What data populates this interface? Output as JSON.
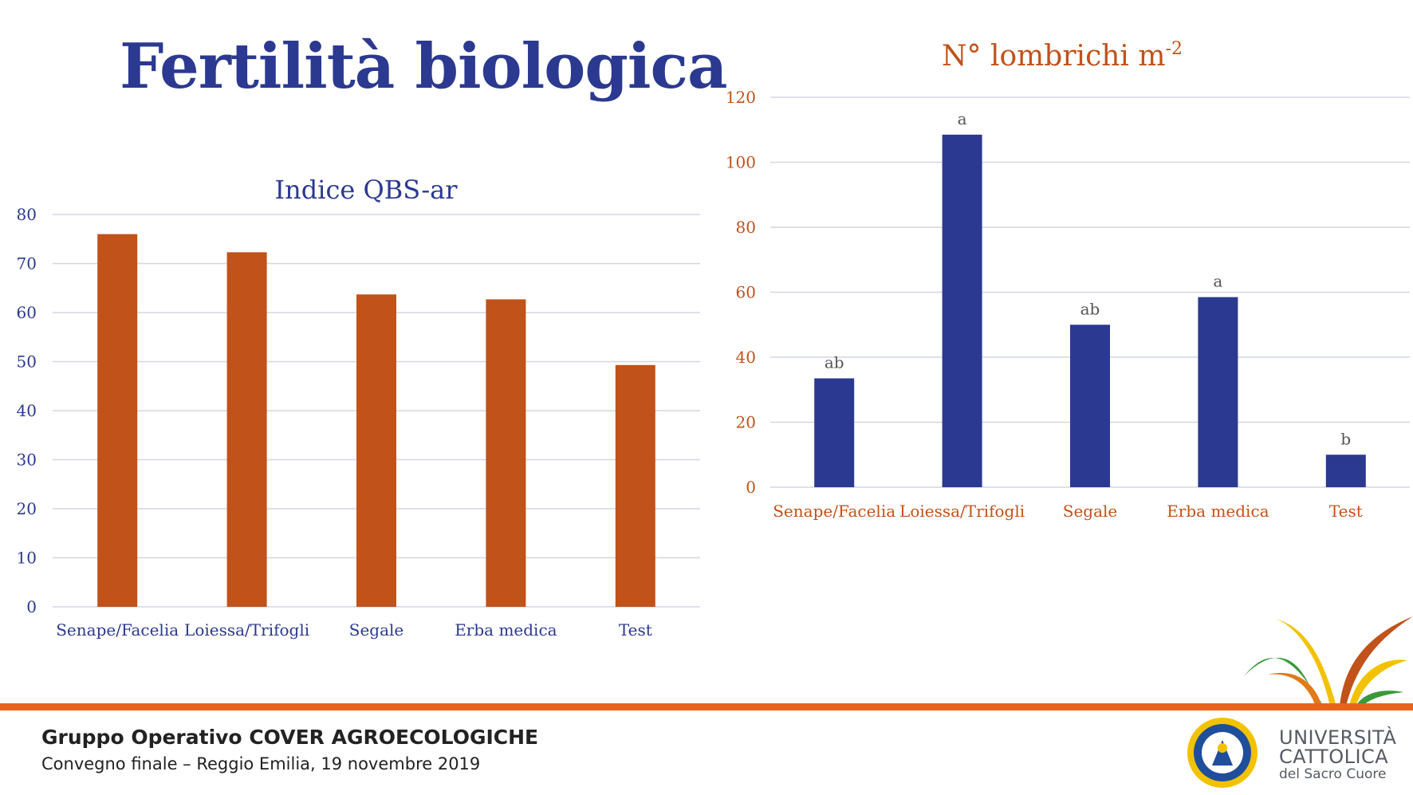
{
  "slide": {
    "title": "Fertilità biologica"
  },
  "chart_data": [
    {
      "type": "bar",
      "title": "Indice QBS-ar",
      "categories": [
        "Senape/Facelia",
        "Loiessa/Trifogli",
        "Segale",
        "Erba medica",
        "Test"
      ],
      "values": [
        76,
        72.3,
        63.7,
        62.7,
        49.3
      ],
      "ylim": [
        0,
        80
      ],
      "yticks": [
        0,
        10,
        20,
        30,
        40,
        50,
        60,
        70,
        80
      ],
      "grid": true,
      "bar_color": "#c0521a",
      "text_color": "#2b3990"
    },
    {
      "type": "bar",
      "title": "N° lombrichi m",
      "title_superscript": "-2",
      "categories": [
        "Senape/Facelia",
        "Loiessa/Trifogli",
        "Segale",
        "Erba medica",
        "Test"
      ],
      "values": [
        33.5,
        108.5,
        50,
        58.5,
        10
      ],
      "data_labels": [
        "ab",
        "a",
        "ab",
        "a",
        "b"
      ],
      "ylim": [
        0,
        120
      ],
      "yticks": [
        0,
        20,
        40,
        60,
        80,
        100,
        120
      ],
      "grid": true,
      "bar_color": "#2b3990",
      "text_color": "#c0521a"
    }
  ],
  "footer": {
    "title": "Gruppo Operativo COVER AGROECOLOGICHE",
    "subtitle": "Convegno finale – Reggio Emilia, 19 novembre 2019",
    "accent_color": "#e8641c",
    "university": {
      "line1": "UNIVERSITÀ",
      "line2": "CATTOLICA",
      "line3": "del Sacro Cuore"
    }
  }
}
